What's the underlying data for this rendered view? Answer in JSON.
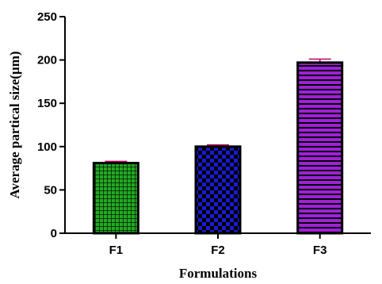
{
  "chart_data": {
    "type": "bar",
    "title": "",
    "xlabel": "Formulations",
    "ylabel": "Average partical size(µm)",
    "categories": [
      "F1",
      "F2",
      "F3"
    ],
    "values": [
      81,
      100,
      197
    ],
    "errors": [
      2,
      2,
      4
    ],
    "ylim": [
      0,
      250
    ],
    "yticks": [
      0,
      50,
      100,
      150,
      200,
      250
    ],
    "ytick_labels": [
      "0",
      "50",
      "100",
      "150",
      "200",
      "250"
    ],
    "grid": false,
    "legend": "none",
    "bar_fills": [
      "#22aa22",
      "#1a1ad0",
      "#a020d8"
    ],
    "error_color": "#c00060"
  }
}
